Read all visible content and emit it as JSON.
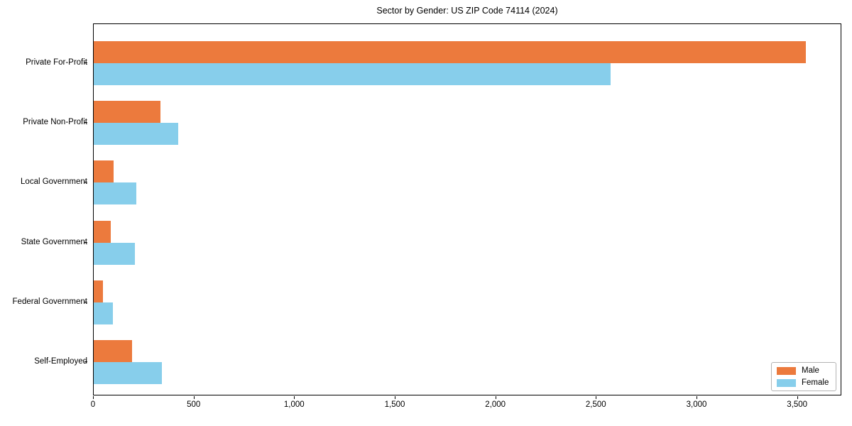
{
  "title": "Sector by Gender: US ZIP Code 74114 (2024)",
  "chart_data": {
    "type": "bar",
    "orientation": "horizontal",
    "title": "Sector by Gender: US ZIP Code 74114 (2024)",
    "categories": [
      "Private For-Profit",
      "Private Non-Profit",
      "Local Government",
      "State Government",
      "Federal Government",
      "Self-Employed"
    ],
    "series": [
      {
        "name": "Male",
        "color": "#ec7a3d",
        "values": [
          3540,
          330,
          100,
          85,
          45,
          190
        ]
      },
      {
        "name": "Female",
        "color": "#87ceeb",
        "values": [
          2570,
          420,
          210,
          205,
          95,
          340
        ]
      }
    ],
    "xlim": [
      0,
      3720
    ],
    "xticks": [
      0,
      500,
      1000,
      1500,
      2000,
      2500,
      3000,
      3500
    ],
    "xtick_labels": [
      "0",
      "500",
      "1,000",
      "1,500",
      "2,000",
      "2,500",
      "3,000",
      "3,500"
    ],
    "xlabel": "",
    "ylabel": "",
    "grid": false,
    "legend_position": "lower right"
  },
  "legend": {
    "male_label": "Male",
    "female_label": "Female"
  }
}
